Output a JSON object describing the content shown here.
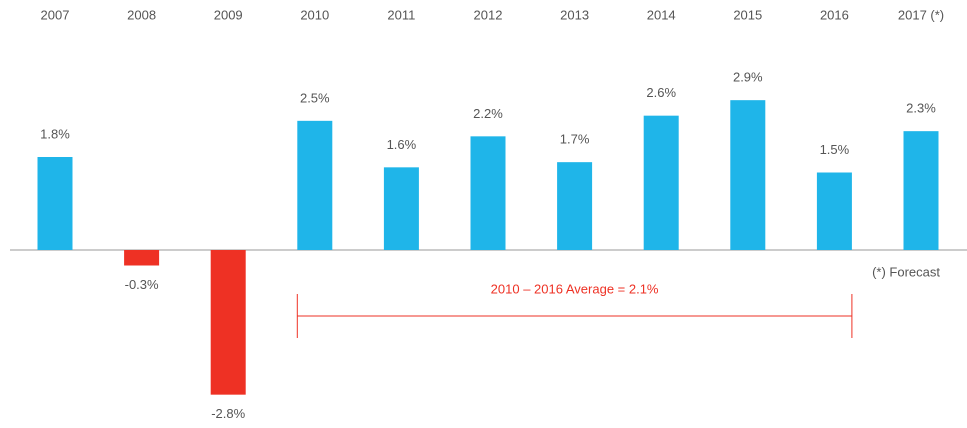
{
  "chart_data": {
    "type": "bar",
    "categories": [
      "2007",
      "2008",
      "2009",
      "2010",
      "2011",
      "2012",
      "2013",
      "2014",
      "2015",
      "2016",
      "2017 (*)"
    ],
    "values": [
      1.8,
      -0.3,
      -2.8,
      2.5,
      1.6,
      2.2,
      1.7,
      2.6,
      2.9,
      1.5,
      2.3
    ],
    "value_labels": [
      "1.8%",
      "-0.3%",
      "-2.8%",
      "2.5%",
      "1.6%",
      "2.2%",
      "1.7%",
      "2.6%",
      "2.9%",
      "1.5%",
      "2.3%"
    ],
    "colors": [
      "#1fb5e9",
      "#ee3124",
      "#ee3124",
      "#1fb5e9",
      "#1fb5e9",
      "#1fb5e9",
      "#1fb5e9",
      "#1fb5e9",
      "#1fb5e9",
      "#1fb5e9",
      "#1fb5e9"
    ],
    "ylim": [
      -3,
      3
    ],
    "annotation": {
      "text": "2010 – 2016 Average = 2.1%",
      "start": "2010",
      "end": "2016",
      "color": "#ee3124"
    },
    "note": "(*) Forecast"
  }
}
